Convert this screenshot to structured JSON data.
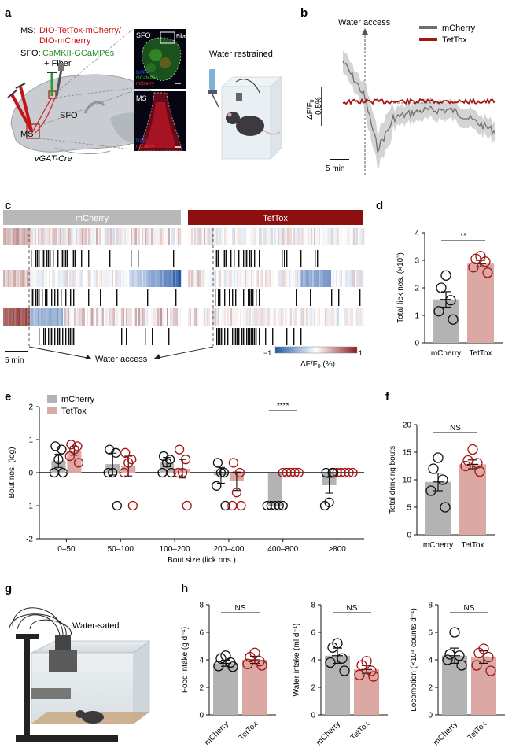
{
  "panel_labels": {
    "a": "a",
    "b": "b",
    "c": "c",
    "d": "d",
    "e": "e",
    "f": "f",
    "g": "g",
    "h": "h"
  },
  "colors": {
    "mcherry": "#6f6f6f",
    "tettox": "#a31414",
    "bar_grey": "#b3b3b3",
    "bar_pink": "#dca8a4",
    "red_text": "#d01010",
    "green_text": "#1f8f2a"
  },
  "panel_a": {
    "ms_label": "MS:",
    "ms_line1": "DIO-TetTox-mCherry/",
    "ms_line2": "DIO-mCherry",
    "sfo_label": "SFO:",
    "sfo_value": "CaMKII-GCaMP6s",
    "fiber": "+ Fiber",
    "brain_sfo": "SFO",
    "brain_ms": "MS",
    "mouse_line": "vGAT-Cre",
    "img_sfo_title": "SFO",
    "img_fiber": "Fiber",
    "img_ms_title": "MS",
    "legend_dapi": "DAPI",
    "legend_gcamp": "GCaMP6s",
    "legend_mcherry": "mCherry",
    "water_restrained": "Water restrained"
  },
  "panel_b": {
    "annotation": "Water access",
    "legend": [
      "mCherry",
      "TetTox"
    ],
    "scale_y_value": "0.5%",
    "scale_x": "5 min"
  },
  "panel_c": {
    "header_left": "mCherry",
    "header_right": "TetTox",
    "scale": "5 min",
    "water_access": "Water access",
    "cbar_min": "−1",
    "cbar_max": "1"
  },
  "chart_data": [
    {
      "id": "d",
      "type": "bar",
      "ylabel": "Total lick nos. (×10³)",
      "categories": [
        "mCherry",
        "TetTox"
      ],
      "values": [
        1.58,
        2.88
      ],
      "sem": [
        0.28,
        0.12
      ],
      "points": [
        [
          2.45,
          2.0,
          1.55,
          1.15,
          0.85
        ],
        [
          3.15,
          3.05,
          2.95,
          2.75,
          2.55
        ]
      ],
      "ylim": [
        0,
        4
      ],
      "yticks": [
        0,
        1,
        2,
        3,
        4
      ],
      "significance": "**"
    },
    {
      "id": "e",
      "type": "bar",
      "ylabel": "Bout nos. (log)",
      "xlabel": "Bout size (lick nos.)",
      "legend": [
        "mCherry",
        "TetTox"
      ],
      "categories": [
        "0–50",
        "50–100",
        "100–200",
        "200–400",
        "400–800",
        ">800"
      ],
      "series": [
        {
          "name": "mCherry",
          "values": [
            0.36,
            0.26,
            0.32,
            -0.08,
            -1.0,
            -0.38
          ],
          "sem": [
            0.2,
            0.33,
            0.14,
            0.24,
            0,
            0.24
          ],
          "points": [
            [
              0.8,
              0.7,
              0.4,
              0.0,
              0.0
            ],
            [
              0.7,
              0.6,
              0.0,
              0.0,
              -1.0
            ],
            [
              0.5,
              0.4,
              0.3,
              0.0,
              0.0
            ],
            [
              0.3,
              0.0,
              0.0,
              -0.4,
              -1.0
            ],
            [
              -1,
              -1,
              -1,
              -1,
              -1
            ],
            [
              0.0,
              0.0,
              -0.9,
              -1.0,
              0.0
            ]
          ]
        },
        {
          "name": "TetTox",
          "values": [
            0.66,
            0.2,
            0.12,
            -0.26,
            0.0,
            0.0
          ],
          "sem": [
            0.13,
            0.3,
            0.28,
            0.28,
            0,
            0
          ],
          "points": [
            [
              0.85,
              0.8,
              0.7,
              0.5,
              0.3
            ],
            [
              0.6,
              0.4,
              0.3,
              0.0,
              -1.0
            ],
            [
              0.7,
              0.4,
              0.0,
              0.0,
              -1.0
            ],
            [
              0.3,
              0.0,
              -0.6,
              -1.0,
              -1.0
            ],
            [
              0,
              0,
              0,
              0,
              0
            ],
            [
              0,
              0,
              0,
              0,
              0
            ]
          ]
        }
      ],
      "ylim": [
        -2,
        2
      ],
      "yticks": [
        -2,
        -1,
        0,
        1,
        2
      ],
      "significance": "****"
    },
    {
      "id": "f",
      "type": "bar",
      "ylabel": "Total drinking bouts",
      "categories": [
        "mCherry",
        "TetTox"
      ],
      "values": [
        9.6,
        12.8
      ],
      "sem": [
        1.6,
        0.8
      ],
      "points": [
        [
          14,
          12,
          10,
          8,
          5
        ],
        [
          15.5,
          13.5,
          13,
          12.5,
          11.5
        ]
      ],
      "ylim": [
        0,
        20
      ],
      "yticks": [
        0,
        5,
        10,
        15,
        20
      ],
      "significance": "NS"
    },
    {
      "id": "h1",
      "type": "bar",
      "ylabel": "Food intake (g d⁻¹)",
      "categories": [
        "mCherry",
        "TetTox"
      ],
      "values": [
        3.75,
        4.0
      ],
      "sem": [
        0.22,
        0.26
      ],
      "points": [
        [
          4.3,
          4.1,
          3.8,
          3.55,
          3.5
        ],
        [
          4.5,
          4.2,
          3.9,
          3.7,
          3.6
        ]
      ],
      "ylim": [
        0,
        8
      ],
      "yticks": [
        0,
        2,
        4,
        6,
        8
      ],
      "significance": "NS"
    },
    {
      "id": "h2",
      "type": "bar",
      "ylabel": "Water intake (ml d⁻¹)",
      "categories": [
        "mCherry",
        "TetTox"
      ],
      "values": [
        4.3,
        3.3
      ],
      "sem": [
        0.55,
        0.28
      ],
      "points": [
        [
          5.2,
          4.9,
          4.1,
          3.8,
          3.2
        ],
        [
          3.9,
          3.6,
          3.2,
          2.9,
          2.8
        ]
      ],
      "ylim": [
        0,
        8
      ],
      "yticks": [
        0,
        2,
        4,
        6,
        8
      ],
      "significance": "NS"
    },
    {
      "id": "h3",
      "type": "bar",
      "ylabel": "Locomotion (×10⁴ counts d⁻¹)",
      "categories": [
        "mCherry",
        "TetTox"
      ],
      "values": [
        4.3,
        4.2
      ],
      "sem": [
        0.55,
        0.45
      ],
      "points": [
        [
          6.0,
          4.4,
          4.3,
          4.0,
          3.6
        ],
        [
          4.8,
          4.5,
          4.2,
          3.6,
          3.2
        ]
      ],
      "ylim": [
        0,
        8
      ],
      "yticks": [
        0,
        2,
        4,
        6,
        8
      ],
      "significance": "NS"
    }
  ],
  "panel_g": {
    "label": "Water-sated"
  }
}
